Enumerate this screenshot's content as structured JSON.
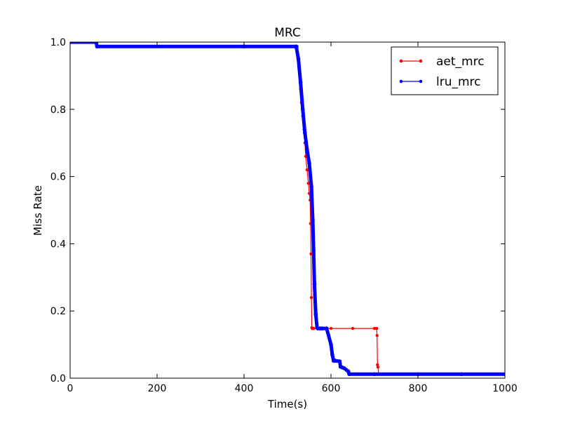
{
  "chart_data": {
    "type": "line",
    "title": "MRC",
    "xlabel": "Time(s)",
    "ylabel": "Miss Rate",
    "xlim": [
      0,
      1000
    ],
    "ylim": [
      0,
      1.0
    ],
    "xticks": [
      "0",
      "200",
      "400",
      "600",
      "800",
      "1000"
    ],
    "yticks": [
      "0.0",
      "0.2",
      "0.4",
      "0.6",
      "0.8",
      "1.0"
    ],
    "grid": false,
    "legend_position": "top-right",
    "series": [
      {
        "name": "aet_mrc",
        "color": "#ff0000",
        "marker": "dot",
        "x": [
          0,
          60,
          62,
          400,
          522,
          525,
          528,
          530,
          532,
          535,
          538,
          540,
          542,
          545,
          548,
          550,
          552,
          553,
          554,
          555,
          556,
          557,
          558,
          560,
          600,
          650,
          700,
          705,
          706,
          707,
          708,
          710,
          800,
          900,
          1000
        ],
        "y": [
          1.0,
          1.0,
          0.987,
          0.987,
          0.987,
          0.95,
          0.9,
          0.86,
          0.82,
          0.78,
          0.74,
          0.7,
          0.66,
          0.62,
          0.58,
          0.55,
          0.53,
          0.46,
          0.37,
          0.24,
          0.15,
          0.148,
          0.148,
          0.148,
          0.148,
          0.148,
          0.148,
          0.148,
          0.127,
          0.04,
          0.033,
          0.012,
          0.012,
          0.012,
          0.012
        ]
      },
      {
        "name": "lru_mrc",
        "color": "#0000ff",
        "marker": "dot",
        "x": [
          0,
          60,
          62,
          400,
          520,
          525,
          530,
          535,
          540,
          545,
          550,
          555,
          558,
          560,
          562,
          565,
          568,
          570,
          575,
          580,
          590,
          600,
          603,
          606,
          610,
          620,
          622,
          626,
          630,
          640,
          642,
          700,
          800,
          900,
          1000
        ],
        "y": [
          1.0,
          1.0,
          0.987,
          0.987,
          0.987,
          0.95,
          0.88,
          0.8,
          0.73,
          0.68,
          0.64,
          0.57,
          0.47,
          0.38,
          0.28,
          0.19,
          0.15,
          0.148,
          0.148,
          0.148,
          0.148,
          0.1,
          0.07,
          0.052,
          0.052,
          0.05,
          0.034,
          0.032,
          0.03,
          0.02,
          0.012,
          0.012,
          0.012,
          0.012,
          0.012
        ]
      }
    ]
  }
}
